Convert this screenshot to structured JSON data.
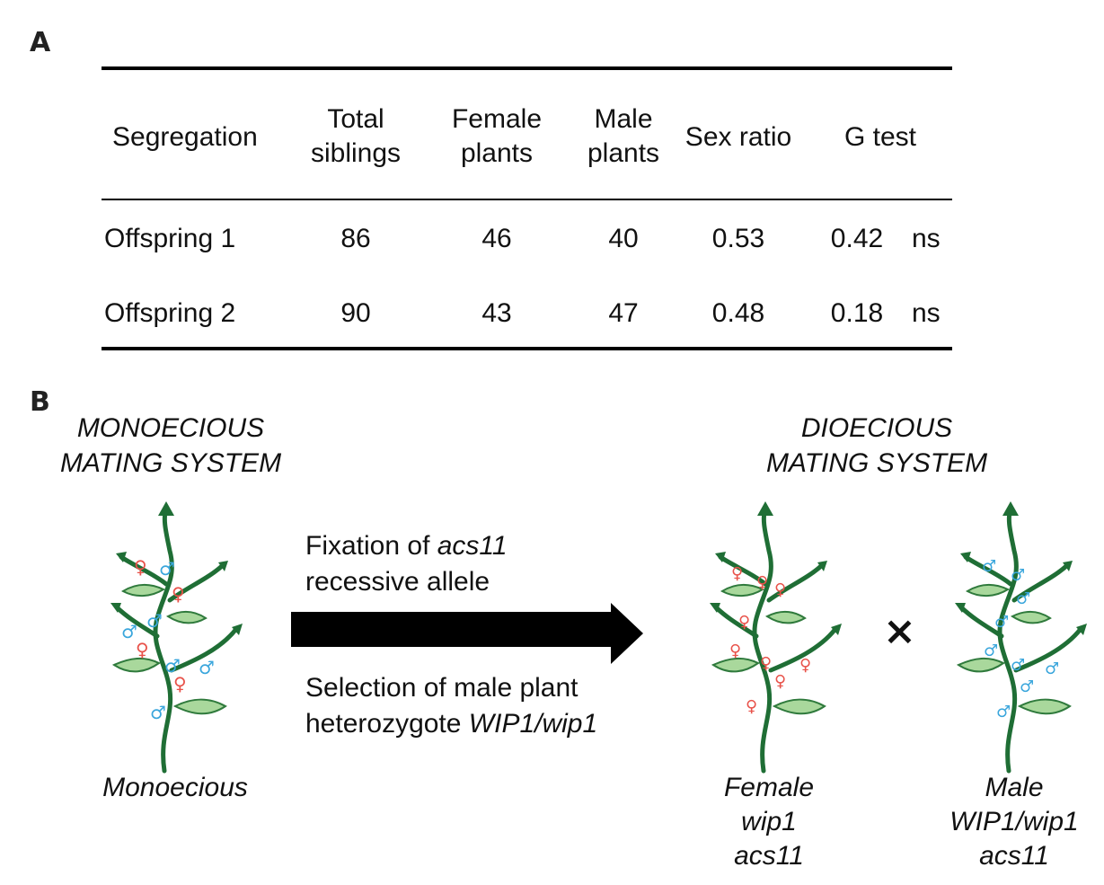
{
  "panels": {
    "a": "A",
    "b": "B"
  },
  "table": {
    "headers": {
      "segregation": "Segregation",
      "total": [
        "Total",
        "siblings"
      ],
      "female": [
        "Female",
        "plants"
      ],
      "male": [
        "Male",
        "plants"
      ],
      "sex_ratio": "Sex ratio",
      "g_test": "G test"
    },
    "rows": [
      {
        "label": "Offspring 1",
        "total": "86",
        "female": "46",
        "male": "40",
        "sex_ratio": "0.53",
        "g": "0.42",
        "sig": "ns"
      },
      {
        "label": "Offspring 2",
        "total": "90",
        "female": "43",
        "male": "47",
        "sex_ratio": "0.48",
        "g": "0.18",
        "sig": "ns"
      }
    ]
  },
  "diagram": {
    "left_title": [
      "MONOECIOUS",
      "MATING SYSTEM"
    ],
    "right_title": [
      "DIOECIOUS",
      "MATING SYSTEM"
    ],
    "arrow_top": {
      "prefix": "Fixation of ",
      "gene": "acs11",
      "line2": "recessive allele"
    },
    "arrow_bottom": {
      "line1": "Selection of male plant",
      "prefix": "heterozygote ",
      "gene": "WIP1/wip1"
    },
    "cross_symbol": "×",
    "monoecious_caption": "Monoecious",
    "female_caption": [
      "Female",
      "wip1",
      "acs11"
    ],
    "male_caption": [
      "Male",
      "WIP1/wip1",
      "acs11"
    ],
    "female_symbol": "♀",
    "male_symbol": "♂"
  },
  "colors": {
    "stem": "#1f6e35",
    "leaf_fill": "#a9d89c",
    "leaf_stroke": "#2f7a3c",
    "female": "#e8524a",
    "male": "#3aa6dc",
    "arrow": "#000000"
  }
}
